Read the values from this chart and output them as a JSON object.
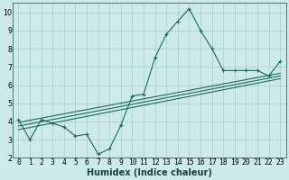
{
  "xlabel": "Humidex (Indice chaleur)",
  "background_color": "#cdeaea",
  "grid_color": "#a8cccc",
  "line_color": "#1a6b5a",
  "x_data": [
    0,
    1,
    2,
    3,
    4,
    5,
    6,
    7,
    8,
    9,
    10,
    11,
    12,
    13,
    14,
    15,
    16,
    17,
    18,
    19,
    20,
    21,
    22,
    23
  ],
  "main_y": [
    4.1,
    3.0,
    4.1,
    3.9,
    3.7,
    3.2,
    3.3,
    2.2,
    2.5,
    3.8,
    5.4,
    5.5,
    7.5,
    8.8,
    9.5,
    10.2,
    9.0,
    8.0,
    6.8,
    6.8,
    6.8,
    6.8,
    6.5,
    7.3
  ],
  "linear_lines": [
    [
      [
        0,
        3.55
      ],
      [
        23,
        6.35
      ]
    ],
    [
      [
        0,
        3.75
      ],
      [
        23,
        6.5
      ]
    ],
    [
      [
        0,
        3.95
      ],
      [
        23,
        6.65
      ]
    ]
  ],
  "ylim": [
    2.0,
    10.5
  ],
  "xlim": [
    -0.5,
    23.5
  ],
  "yticks": [
    2,
    3,
    4,
    5,
    6,
    7,
    8,
    9,
    10
  ],
  "xticks": [
    0,
    1,
    2,
    3,
    4,
    5,
    6,
    7,
    8,
    9,
    10,
    11,
    12,
    13,
    14,
    15,
    16,
    17,
    18,
    19,
    20,
    21,
    22,
    23
  ],
  "tick_fontsize": 5.8,
  "xlabel_fontsize": 7.0,
  "xlabel_fontweight": "bold",
  "line_width": 0.8,
  "marker_size": 3.5,
  "marker_ew": 0.8
}
